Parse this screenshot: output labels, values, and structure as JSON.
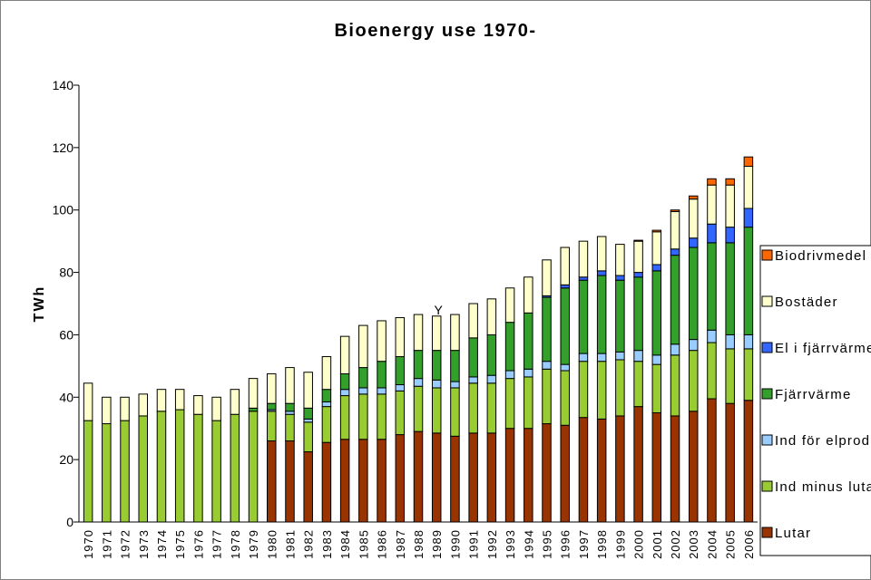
{
  "chart_data": {
    "type": "bar",
    "stacked": true,
    "title": "Bioenergy use 1970-",
    "ylabel": "TWh",
    "xlabel": "",
    "ylim": [
      0,
      140
    ],
    "yticks": [
      0,
      20,
      40,
      60,
      80,
      100,
      120,
      140
    ],
    "grid": false,
    "legend_position": "right",
    "annotation": "Y",
    "categories": [
      "1970",
      "1971",
      "1972",
      "1973",
      "1974",
      "1975",
      "1976",
      "1977",
      "1978",
      "1979",
      "1980",
      "1981",
      "1982",
      "1983",
      "1984",
      "1985",
      "1986",
      "1987",
      "1988",
      "1989",
      "1990",
      "1991",
      "1992",
      "1993",
      "1994",
      "1995",
      "1996",
      "1997",
      "1998",
      "1999",
      "2000",
      "2001",
      "2002",
      "2003",
      "2004",
      "2005",
      "2006"
    ],
    "series": [
      {
        "name": "Lutar",
        "color": "#993300",
        "values": [
          0,
          0,
          0,
          0,
          0,
          0,
          0,
          0,
          0,
          0,
          26,
          26,
          22.5,
          25.5,
          26.5,
          26.5,
          26.5,
          28,
          29,
          28.5,
          27.5,
          28.5,
          28.5,
          30,
          30,
          31.5,
          31,
          33.5,
          33,
          34,
          37,
          35,
          34,
          35.5,
          39.5,
          38,
          39
        ]
      },
      {
        "name": "Ind minus lutar",
        "color": "#99CC33",
        "values": [
          32.5,
          31.5,
          32.5,
          34,
          35.5,
          36,
          34.5,
          32.5,
          34.5,
          35.5,
          9.5,
          8.5,
          9.5,
          11.5,
          14,
          14.5,
          14.5,
          14,
          14.5,
          14.5,
          15.5,
          16,
          16,
          16,
          16.5,
          17.5,
          17.5,
          18,
          18.5,
          18,
          14.5,
          15.5,
          19.5,
          19.5,
          18,
          17.5,
          16.5
        ]
      },
      {
        "name": "Ind för elprod",
        "color": "#99CCFF",
        "values": [
          0,
          0,
          0,
          0,
          0,
          0,
          0,
          0,
          0,
          0,
          0.5,
          1,
          1,
          1.5,
          2,
          2,
          2,
          2,
          2.5,
          2.5,
          2,
          2,
          2.5,
          2.5,
          2.5,
          2.5,
          2,
          2.5,
          2.5,
          2.5,
          3.5,
          3,
          3.5,
          3.5,
          4,
          4.5,
          4.5
        ]
      },
      {
        "name": "Fjärrvärme",
        "color": "#33A02C",
        "values": [
          0,
          0,
          0,
          0,
          0,
          0,
          0,
          0,
          0,
          1,
          2,
          2.5,
          3.5,
          4,
          5,
          6.5,
          8.5,
          9,
          9,
          9.5,
          10,
          12.5,
          13,
          15.5,
          18,
          20.5,
          24.5,
          23.5,
          25,
          23,
          23.5,
          27,
          28.5,
          29.5,
          28,
          29.5,
          34.5
        ]
      },
      {
        "name": "El i fjärrvärme",
        "color": "#3366FF",
        "values": [
          0,
          0,
          0,
          0,
          0,
          0,
          0,
          0,
          0,
          0,
          0,
          0,
          0,
          0,
          0,
          0,
          0,
          0,
          0,
          0,
          0,
          0,
          0,
          0,
          0,
          0.5,
          1,
          1,
          1.5,
          1.5,
          1.5,
          2,
          2,
          3,
          6,
          5,
          6
        ]
      },
      {
        "name": "Bostäder",
        "color": "#FFFFCC",
        "values": [
          12,
          8.5,
          7.5,
          7,
          7,
          6.5,
          6,
          7.5,
          8,
          9.5,
          9.5,
          11.5,
          11.5,
          10.5,
          12,
          13.5,
          13,
          12.5,
          11.5,
          11,
          11.5,
          11,
          11.5,
          11,
          11.5,
          11.5,
          12,
          11.5,
          11,
          10,
          10,
          10.5,
          12,
          12.5,
          12.5,
          13.5,
          13.5
        ]
      },
      {
        "name": "Biodrivmedel",
        "color": "#FF6600",
        "values": [
          0,
          0,
          0,
          0,
          0,
          0,
          0,
          0,
          0,
          0,
          0,
          0,
          0,
          0,
          0,
          0,
          0,
          0,
          0,
          0,
          0,
          0,
          0,
          0,
          0,
          0,
          0,
          0,
          0,
          0,
          0.3,
          0.5,
          0.5,
          1,
          2,
          2,
          3
        ]
      }
    ],
    "legend_order": [
      "Biodrivmedel",
      "Bostäder",
      "El i fjärrvärme",
      "Fjärrvärme",
      "Ind för elprod",
      "Ind minus lutar",
      "Lutar"
    ]
  }
}
